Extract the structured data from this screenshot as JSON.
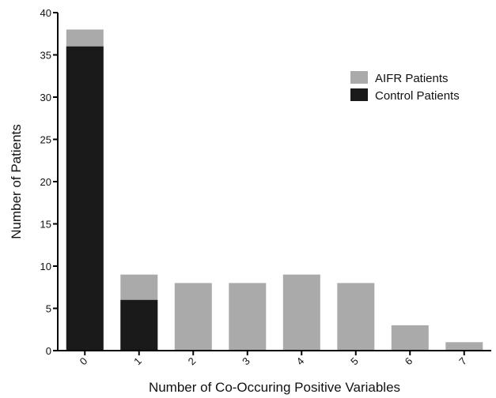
{
  "chart_data": {
    "type": "bar",
    "stacked": "overlay",
    "categories": [
      "0",
      "1",
      "2",
      "3",
      "4",
      "5",
      "6",
      "7"
    ],
    "series": [
      {
        "name": "AIFR Patients",
        "color": "#aaaaaa",
        "values": [
          38,
          9,
          8,
          8,
          9,
          8,
          3,
          1
        ]
      },
      {
        "name": "Control Patients",
        "color": "#1a1a1a",
        "values": [
          36,
          6,
          0,
          0,
          0,
          0,
          0,
          0
        ]
      }
    ],
    "xlabel": "Number of Co-Occuring Positive Variables",
    "ylabel": "Number of Patients",
    "ylim": [
      0,
      40
    ],
    "yticks": [
      0,
      5,
      10,
      15,
      20,
      25,
      30,
      35,
      40
    ],
    "legend_position": "top-right",
    "grid": false
  }
}
